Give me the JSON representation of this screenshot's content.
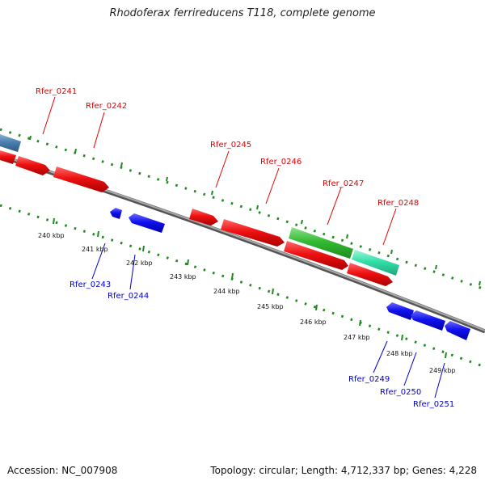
{
  "title": "Rhodoferax ferrireducens T118, complete genome",
  "footer": {
    "accession": "Accession: NC_007908",
    "topology": "Topology: circular; Length: 4,712,337 bp; Genes: 4,228"
  },
  "scale_labels": [
    "240 kbp",
    "241 kbp",
    "242 kbp",
    "243 kbp",
    "244 kbp",
    "245 kbp",
    "246 kbp",
    "247 kbp",
    "248 kbp",
    "249 kbp"
  ],
  "top_gene_labels": [
    "Rfer_0241",
    "Rfer_0242",
    "Rfer_0245",
    "Rfer_0246",
    "Rfer_0247",
    "Rfer_0248"
  ],
  "bottom_gene_labels": [
    "Rfer_0243",
    "Rfer_0244",
    "Rfer_0249",
    "Rfer_0250",
    "Rfer_0251"
  ],
  "colors": {
    "forward_gene": "#ee1111",
    "reverse_gene": "#1111ee",
    "rna_gene": "#33bb33",
    "other_gene": "#33e0a8",
    "partial_gene": "#4a7fb0",
    "backbone": "#888888",
    "ticks": "#228822"
  }
}
